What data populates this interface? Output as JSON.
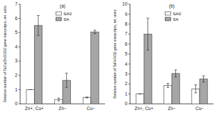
{
  "chart_data": [
    {
      "type": "bar",
      "title": "(a)",
      "y_label": "Relative number of TaCu/ZnSOD2 gene transcripts, rel. units",
      "categories": [
        "Zn+, Cu+",
        "Zn−",
        "Cu−"
      ],
      "series": [
        {
          "name": "SA0",
          "color": "#ffffff",
          "values": [
            1.0,
            0.3,
            0.45
          ],
          "errors": [
            0,
            0.1,
            0.03
          ]
        },
        {
          "name": "SA",
          "color": "#a6a6a6",
          "values": [
            5.5,
            1.65,
            5.05
          ],
          "errors": [
            0.7,
            0.5,
            0.12
          ]
        }
      ],
      "ylim": [
        0,
        7
      ],
      "yticks": [
        0,
        1,
        2,
        3,
        4,
        5,
        6,
        7
      ],
      "grid": false,
      "legend": "top"
    },
    {
      "type": "bar",
      "title": "(b)",
      "y_label": "Relative number of TaFeSOD gene transcripts, rel. units",
      "categories": [
        "Zn+, Cu+",
        "Zn−",
        "Cu−"
      ],
      "series": [
        {
          "name": "SA0",
          "color": "#ffffff",
          "values": [
            1.0,
            1.85,
            1.5
          ],
          "errors": [
            0.02,
            0.2,
            0.4
          ]
        },
        {
          "name": "SA",
          "color": "#a6a6a6",
          "values": [
            7.0,
            3.05,
            2.5
          ],
          "errors": [
            1.6,
            0.35,
            0.3
          ]
        }
      ],
      "ylim": [
        0,
        10
      ],
      "yticks": [
        0,
        1,
        2,
        3,
        4,
        5,
        6,
        7,
        8,
        9,
        10
      ],
      "grid": false,
      "legend": "top"
    }
  ]
}
